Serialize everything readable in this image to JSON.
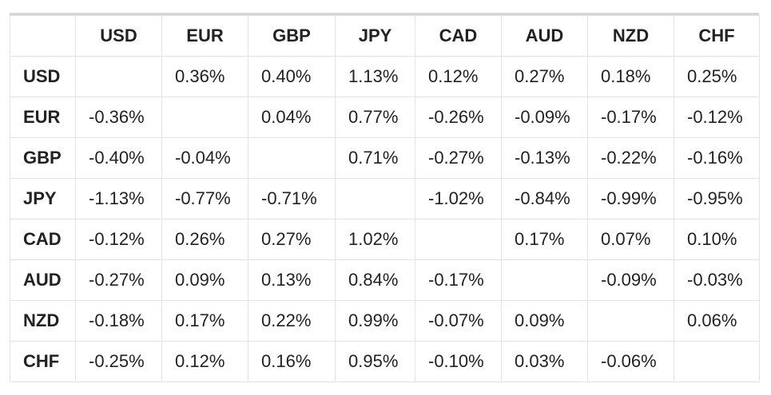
{
  "table": {
    "columns": [
      "USD",
      "EUR",
      "GBP",
      "JPY",
      "CAD",
      "AUD",
      "NZD",
      "CHF"
    ],
    "rows": [
      {
        "label": "USD",
        "values": [
          "",
          "0.36%",
          "0.40%",
          "1.13%",
          "0.12%",
          "0.27%",
          "0.18%",
          "0.25%"
        ]
      },
      {
        "label": "EUR",
        "values": [
          "-0.36%",
          "",
          "0.04%",
          "0.77%",
          "-0.26%",
          "-0.09%",
          "-0.17%",
          "-0.12%"
        ]
      },
      {
        "label": "GBP",
        "values": [
          "-0.40%",
          "-0.04%",
          "",
          "0.71%",
          "-0.27%",
          "-0.13%",
          "-0.22%",
          "-0.16%"
        ]
      },
      {
        "label": "JPY",
        "values": [
          "-1.13%",
          "-0.77%",
          "-0.71%",
          "",
          "-1.02%",
          "-0.84%",
          "-0.99%",
          "-0.95%"
        ]
      },
      {
        "label": "CAD",
        "values": [
          "-0.12%",
          "0.26%",
          "0.27%",
          "1.02%",
          "",
          "0.17%",
          "0.07%",
          "0.10%"
        ]
      },
      {
        "label": "AUD",
        "values": [
          "-0.27%",
          "0.09%",
          "0.13%",
          "0.84%",
          "-0.17%",
          "",
          "-0.09%",
          "-0.03%"
        ]
      },
      {
        "label": "NZD",
        "values": [
          "-0.18%",
          "0.17%",
          "0.22%",
          "0.99%",
          "-0.07%",
          "0.09%",
          "",
          "0.06%"
        ]
      },
      {
        "label": "CHF",
        "values": [
          "-0.25%",
          "0.12%",
          "0.16%",
          "0.95%",
          "-0.10%",
          "0.03%",
          "-0.06%",
          ""
        ]
      }
    ]
  },
  "colors": {
    "text": "#222222",
    "grid": "#e3e3e3",
    "top_rule": "#d6d6d6",
    "background": "#ffffff"
  }
}
